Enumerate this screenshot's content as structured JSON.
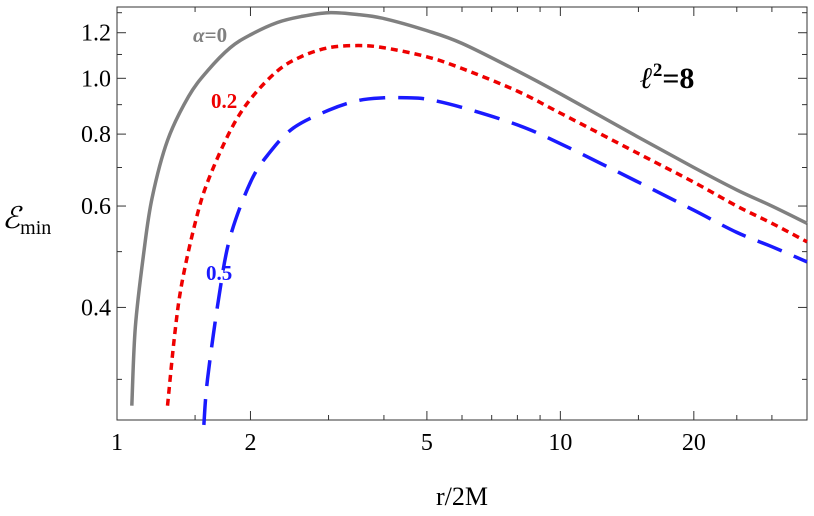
{
  "chart_data": {
    "type": "line",
    "x_scale": "log",
    "y_scale": "log",
    "xlim": [
      1.0,
      36.0
    ],
    "ylim": [
      0.255,
      1.33
    ],
    "xlabel": "r/2M",
    "ylabel_main": "ℰ",
    "ylabel_sub": "min",
    "x_ticks": [
      1,
      2,
      5,
      10,
      20
    ],
    "x_tick_labels": [
      "1",
      "2",
      "5",
      "10",
      "20"
    ],
    "y_ticks": [
      0.4,
      0.6,
      0.8,
      1.0,
      1.2
    ],
    "y_tick_labels": [
      "0.4",
      "0.6",
      "0.8",
      "1.0",
      "1.2"
    ],
    "grid": false,
    "annotation": {
      "main": "ℓ",
      "sup": "2",
      "rest": "=8"
    },
    "series": [
      {
        "name": "α=0",
        "label_prefix": "α",
        "label_value": "=0",
        "color": "#808080",
        "dash": "solid",
        "x": [
          1.08,
          1.1,
          1.15,
          1.2,
          1.3,
          1.45,
          1.6,
          1.8,
          2.0,
          2.3,
          2.6,
          3.0,
          3.5,
          4.0,
          5.0,
          6.0,
          8.0,
          10.0,
          15.0,
          20.0,
          25.0,
          30.0,
          36.0
        ],
        "y": [
          0.27,
          0.37,
          0.5,
          0.62,
          0.78,
          0.93,
          1.03,
          1.13,
          1.19,
          1.25,
          1.28,
          1.3,
          1.29,
          1.27,
          1.21,
          1.15,
          1.03,
          0.94,
          0.79,
          0.7,
          0.64,
          0.6,
          0.56
        ]
      },
      {
        "name": "0.2",
        "label_prefix": "",
        "label_value": "0.2",
        "color": "#ee0000",
        "dash": "short",
        "x": [
          1.3,
          1.35,
          1.4,
          1.5,
          1.6,
          1.8,
          2.0,
          2.3,
          2.6,
          3.0,
          3.5,
          4.0,
          5.0,
          6.0,
          8.0,
          10.0,
          15.0,
          20.0,
          25.0,
          30.0,
          36.0
        ],
        "y": [
          0.27,
          0.36,
          0.44,
          0.56,
          0.66,
          0.81,
          0.92,
          1.03,
          1.09,
          1.13,
          1.14,
          1.13,
          1.09,
          1.04,
          0.95,
          0.87,
          0.74,
          0.66,
          0.6,
          0.56,
          0.52
        ]
      },
      {
        "name": "0.5",
        "label_prefix": "",
        "label_value": "0.5",
        "color": "#1a1aff",
        "dash": "long",
        "x": [
          1.57,
          1.6,
          1.7,
          1.8,
          2.0,
          2.2,
          2.5,
          3.0,
          3.5,
          4.0,
          4.5,
          5.0,
          6.0,
          8.0,
          10.0,
          15.0,
          20.0,
          25.0,
          30.0,
          36.0
        ],
        "y": [
          0.25,
          0.3,
          0.42,
          0.53,
          0.66,
          0.74,
          0.82,
          0.88,
          0.915,
          0.925,
          0.925,
          0.92,
          0.89,
          0.83,
          0.77,
          0.66,
          0.59,
          0.54,
          0.51,
          0.48
        ]
      }
    ]
  }
}
